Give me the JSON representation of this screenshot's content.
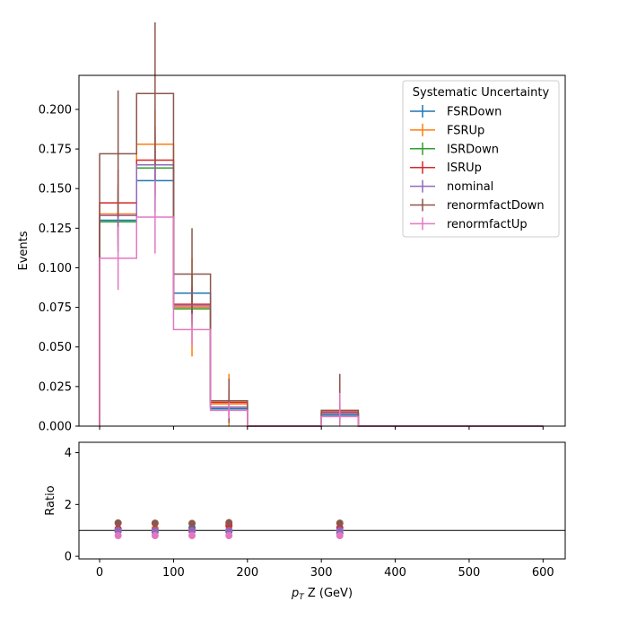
{
  "chart_data": [
    {
      "type": "line",
      "drawstyle": "steps",
      "ylabel": "Events",
      "xlim": [
        -28,
        630
      ],
      "ylim": [
        0,
        0.2215
      ],
      "yticks": [
        0.0,
        0.025,
        0.05,
        0.075,
        0.1,
        0.125,
        0.15,
        0.175,
        0.2
      ],
      "ytick_labels": [
        "0.000",
        "0.025",
        "0.050",
        "0.075",
        "0.100",
        "0.125",
        "0.150",
        "0.175",
        "0.200"
      ],
      "bin_edges": [
        0,
        50,
        100,
        150,
        200,
        300,
        350,
        600
      ],
      "bin_centers": [
        25,
        75,
        125,
        175,
        250,
        325,
        475
      ],
      "legend": {
        "title": "Systematic Uncertainty",
        "placement": "top-right"
      },
      "series": [
        {
          "name": "FSRDown",
          "color": "#1f77b4",
          "values": [
            0.13,
            0.155,
            0.084,
            0.011,
            0,
            0.007,
            0
          ],
          "errors": [
            0.02,
            0.02,
            0.012,
            0.006,
            0,
            0.006,
            0
          ]
        },
        {
          "name": "FSRUp",
          "color": "#ff7f0e",
          "values": [
            0.134,
            0.178,
            0.075,
            0.014,
            0,
            0.008,
            0
          ],
          "errors": [
            0.02,
            0.022,
            0.031,
            0.019,
            0,
            0.018,
            0
          ]
        },
        {
          "name": "ISRDown",
          "color": "#2ca02c",
          "values": [
            0.129,
            0.163,
            0.074,
            0.012,
            0,
            0.008,
            0
          ],
          "errors": [
            0.018,
            0.02,
            0.011,
            0.006,
            0,
            0.006,
            0
          ]
        },
        {
          "name": "ISRUp",
          "color": "#d62728",
          "values": [
            0.141,
            0.168,
            0.077,
            0.015,
            0,
            0.009,
            0
          ],
          "errors": [
            0.021,
            0.021,
            0.011,
            0.008,
            0,
            0.007,
            0
          ]
        },
        {
          "name": "nominal",
          "color": "#9467bd",
          "values": [
            0.133,
            0.165,
            0.076,
            0.012,
            0,
            0.008,
            0
          ],
          "errors": [
            0.019,
            0.02,
            0.011,
            0.006,
            0,
            0.006,
            0
          ]
        },
        {
          "name": "renormfactDown",
          "color": "#8c564b",
          "values": [
            0.172,
            0.21,
            0.096,
            0.016,
            0,
            0.01,
            0
          ],
          "errors": [
            0.04,
            0.045,
            0.029,
            0.014,
            0,
            0.023,
            0
          ]
        },
        {
          "name": "renormfactUp",
          "color": "#e377c2",
          "values": [
            0.106,
            0.132,
            0.061,
            0.01,
            0,
            0.006,
            0
          ],
          "errors": [
            0.02,
            0.023,
            0.01,
            0.005,
            0,
            0.015,
            0
          ]
        }
      ]
    },
    {
      "type": "scatter",
      "xlabel_prefix": "p",
      "xlabel_sub": "T",
      "xlabel_rest": " Z (GeV)",
      "ylabel": "Ratio",
      "xlim": [
        -28,
        630
      ],
      "ylim": [
        -0.1,
        4.4
      ],
      "xticks": [
        0,
        100,
        200,
        300,
        400,
        500,
        600
      ],
      "xtick_labels": [
        "0",
        "100",
        "200",
        "300",
        "400",
        "500",
        "600"
      ],
      "yticks": [
        0,
        2,
        4
      ],
      "ytick_labels": [
        "0",
        "2",
        "4"
      ],
      "reference_line": 1,
      "x": [
        25,
        75,
        125,
        175,
        325
      ],
      "series": [
        {
          "name": "FSRDown",
          "color": "#1f77b4",
          "values": [
            0.98,
            0.94,
            1.1,
            0.95,
            0.9
          ]
        },
        {
          "name": "FSRUp",
          "color": "#ff7f0e",
          "values": [
            1.01,
            1.08,
            0.98,
            1.15,
            1.0
          ]
        },
        {
          "name": "ISRDown",
          "color": "#2ca02c",
          "values": [
            0.97,
            0.99,
            0.97,
            1.0,
            1.0
          ]
        },
        {
          "name": "ISRUp",
          "color": "#d62728",
          "values": [
            1.06,
            1.02,
            1.01,
            1.2,
            1.1
          ]
        },
        {
          "name": "nominal",
          "color": "#9467bd",
          "values": [
            1.0,
            1.0,
            1.0,
            1.0,
            1.0
          ]
        },
        {
          "name": "renormfactDown",
          "color": "#8c564b",
          "values": [
            1.29,
            1.28,
            1.27,
            1.3,
            1.28
          ]
        },
        {
          "name": "renormfactUp",
          "color": "#e377c2",
          "values": [
            0.8,
            0.8,
            0.8,
            0.8,
            0.8
          ]
        }
      ]
    }
  ]
}
